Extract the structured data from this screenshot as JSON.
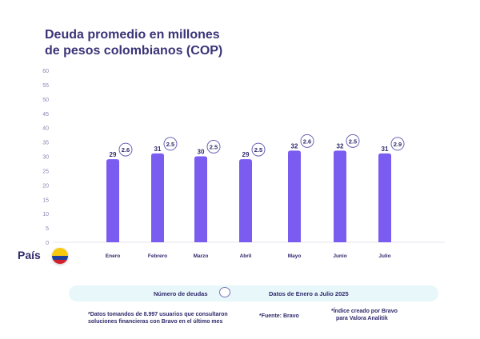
{
  "title_line1": "Deuda promedio en millones",
  "title_line2": "de pesos colombianos (COP)",
  "country_label": "País",
  "flag_icon": "colombia-flag-icon",
  "legend": {
    "debts_label": "Número de deudas",
    "period_label": "Datos de Enero a Julio 2025"
  },
  "notes": {
    "source_data_line1": "*Datos tomandos de 8.997 usuarios que consultaron",
    "source_data_line2": "soluciones financieras con Bravo en el último mes",
    "source": "*Fuente: Bravo",
    "index_line1": "*Índice creado por Bravo",
    "index_line2": "para Valora Analitik"
  },
  "colors": {
    "bar": "#7b5cf0",
    "bubble_border": "#6b63b5",
    "title": "#3a3478"
  },
  "chart_data": {
    "type": "bar",
    "title": "Deuda promedio en millones de pesos colombianos (COP)",
    "categories": [
      "Enero",
      "Febrero",
      "Marzo",
      "Abril",
      "Mayo",
      "Junio",
      "Julio"
    ],
    "series": [
      {
        "name": "",
        "values": [
          29,
          31,
          30,
          29,
          32,
          32,
          31
        ]
      }
    ],
    "debt_counts": [
      2.6,
      2.5,
      2.5,
      2.5,
      2.6,
      2.5,
      2.9
    ],
    "ylim": [
      0,
      60
    ],
    "yticks": [
      0,
      5,
      10,
      15,
      20,
      25,
      30,
      35,
      40,
      45,
      50,
      55,
      60
    ],
    "grid": false
  }
}
